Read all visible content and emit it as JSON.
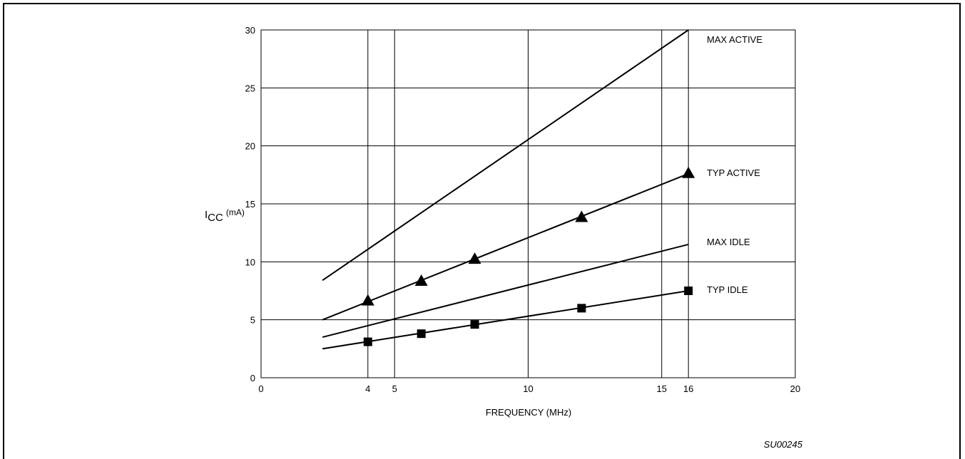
{
  "chart_data": {
    "type": "line",
    "xlabel": "FREQUENCY (MHz)",
    "ylabel": {
      "main": "I",
      "sub": "CC",
      "unit": "(mA)"
    },
    "xlim": [
      0,
      20
    ],
    "ylim": [
      0,
      30
    ],
    "x_ticks": [
      0,
      4,
      5,
      10,
      15,
      16,
      20
    ],
    "y_ticks": [
      0,
      5,
      10,
      15,
      20,
      25,
      30
    ],
    "grid": true,
    "figure_code": "SU00245",
    "series": [
      {
        "name": "MAX ACTIVE",
        "marker": "none",
        "points": [
          [
            2.3,
            8.4
          ],
          [
            16,
            30.0
          ]
        ]
      },
      {
        "name": "TYP ACTIVE",
        "marker": "triangle",
        "line": [
          [
            2.3,
            5.0
          ],
          [
            16,
            17.6
          ]
        ],
        "points": [
          [
            4,
            6.6
          ],
          [
            6,
            8.3
          ],
          [
            8,
            10.2
          ],
          [
            12,
            13.8
          ],
          [
            16,
            17.6
          ]
        ]
      },
      {
        "name": "MAX IDLE",
        "marker": "none",
        "points": [
          [
            2.3,
            3.5
          ],
          [
            16,
            11.5
          ]
        ]
      },
      {
        "name": "TYP IDLE",
        "marker": "square",
        "line": [
          [
            2.3,
            2.5
          ],
          [
            16,
            7.5
          ]
        ],
        "points": [
          [
            4,
            3.1
          ],
          [
            6,
            3.8
          ],
          [
            8,
            4.6
          ],
          [
            12,
            6.0
          ],
          [
            16,
            7.5
          ]
        ]
      }
    ]
  }
}
